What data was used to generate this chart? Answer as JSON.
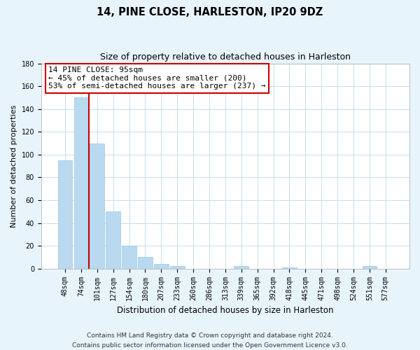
{
  "title": "14, PINE CLOSE, HARLESTON, IP20 9DZ",
  "subtitle": "Size of property relative to detached houses in Harleston",
  "xlabel": "Distribution of detached houses by size in Harleston",
  "ylabel": "Number of detached properties",
  "bar_labels": [
    "48sqm",
    "74sqm",
    "101sqm",
    "127sqm",
    "154sqm",
    "180sqm",
    "207sqm",
    "233sqm",
    "260sqm",
    "286sqm",
    "313sqm",
    "339sqm",
    "365sqm",
    "392sqm",
    "418sqm",
    "445sqm",
    "471sqm",
    "498sqm",
    "524sqm",
    "551sqm",
    "577sqm"
  ],
  "bar_values": [
    95,
    150,
    110,
    50,
    20,
    10,
    4,
    2,
    0,
    0,
    0,
    2,
    0,
    0,
    1,
    0,
    0,
    0,
    0,
    2,
    0
  ],
  "bar_color": "#b8d9f0",
  "bar_edge_color": "#9fc8e8",
  "vline_bar_index": 1,
  "vline_color": "#cc0000",
  "vline_linewidth": 1.5,
  "annotation_line1": "14 PINE CLOSE: 95sqm",
  "annotation_line2": "← 45% of detached houses are smaller (200)",
  "annotation_line3": "53% of semi-detached houses are larger (237) →",
  "box_facecolor": "#ffffff",
  "box_edgecolor": "#cc0000",
  "ylim": [
    0,
    180
  ],
  "yticks": [
    0,
    20,
    40,
    60,
    80,
    100,
    120,
    140,
    160,
    180
  ],
  "footer_line1": "Contains HM Land Registry data © Crown copyright and database right 2024.",
  "footer_line2": "Contains public sector information licensed under the Open Government Licence v3.0.",
  "bg_color": "#e8f4fc",
  "plot_bg_color": "#ffffff",
  "grid_color": "#c5dff0",
  "title_fontsize": 10.5,
  "subtitle_fontsize": 9,
  "annotation_fontsize": 8,
  "footer_fontsize": 6.5,
  "tick_fontsize": 7,
  "label_fontsize": 8.5,
  "ylabel_fontsize": 8
}
